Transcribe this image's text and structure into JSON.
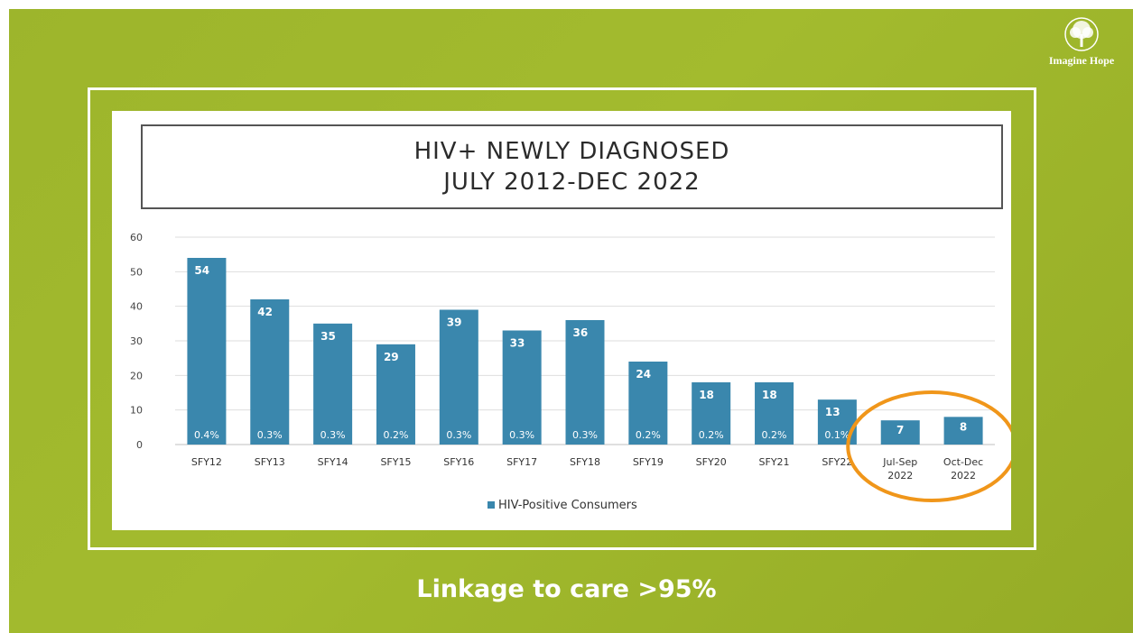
{
  "logo": {
    "text": "Imagine Hope",
    "icon": "tree-icon"
  },
  "footer": {
    "text": "Linkage to care >95%"
  },
  "colors": {
    "bar": "#3a87ad",
    "highlight_ring": "#f0961a",
    "background": "#9fb72c"
  },
  "chart_data": {
    "type": "bar",
    "title": [
      "HIV+ NEWLY DIAGNOSED",
      "JULY 2012-DEC 2022"
    ],
    "categories": [
      "SFY12",
      "SFY13",
      "SFY14",
      "SFY15",
      "SFY16",
      "SFY17",
      "SFY18",
      "SFY19",
      "SFY20",
      "SFY21",
      "SFY22",
      "Jul-Sep 2022",
      "Oct-Dec 2022"
    ],
    "series": [
      {
        "name": "HIV-Positive Consumers",
        "values": [
          54,
          42,
          35,
          29,
          39,
          33,
          36,
          24,
          18,
          18,
          13,
          7,
          8
        ],
        "percent_labels": [
          "0.4%",
          "0.3%",
          "0.3%",
          "0.2%",
          "0.3%",
          "0.3%",
          "0.3%",
          "0.2%",
          "0.2%",
          "0.2%",
          "0.1%",
          "",
          ""
        ]
      }
    ],
    "ylim": [
      0,
      60
    ],
    "yticks": [
      0,
      10,
      20,
      30,
      40,
      50,
      60
    ],
    "grid": true,
    "legend": "bottom-center",
    "highlighted_categories": [
      "Jul-Sep 2022",
      "Oct-Dec 2022"
    ]
  }
}
